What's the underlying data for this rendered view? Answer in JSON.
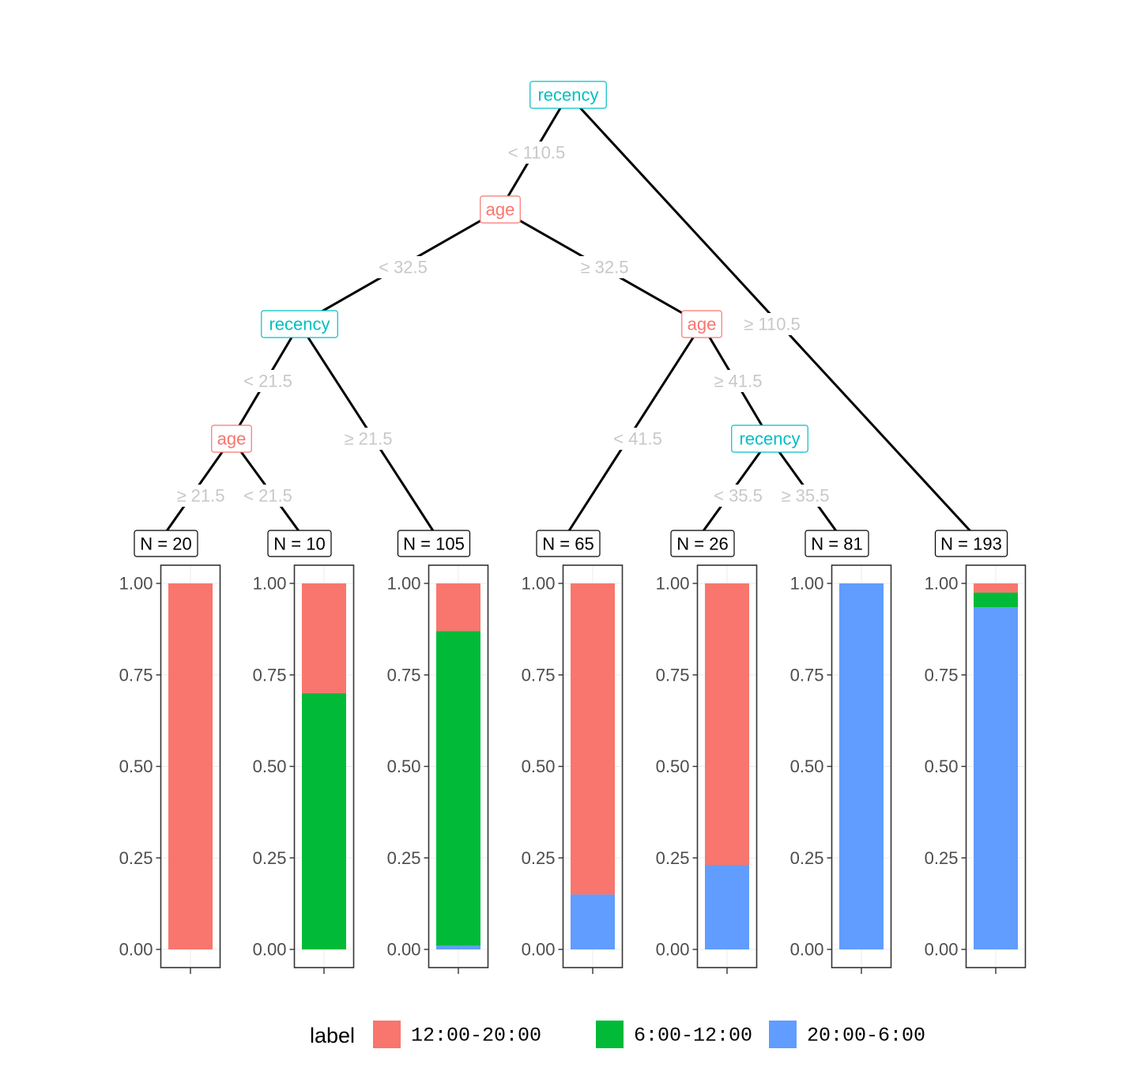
{
  "colors": {
    "class_1": "#F8766D",
    "class_2": "#00BA38",
    "class_3": "#619CFF",
    "recency_node": "#00BFC4",
    "age_node": "#F8766D",
    "edge": "#000000",
    "edge_label": "#C8C8C8"
  },
  "tree": {
    "nodes": [
      {
        "id": "n1",
        "label": "recency",
        "var": "recency"
      },
      {
        "id": "n2",
        "label": "age",
        "var": "age"
      },
      {
        "id": "n3",
        "label": "recency",
        "var": "recency"
      },
      {
        "id": "n4",
        "label": "age",
        "var": "age"
      },
      {
        "id": "n5",
        "label": "age",
        "var": "age"
      },
      {
        "id": "n6",
        "label": "recency",
        "var": "recency"
      }
    ],
    "edges": [
      {
        "from": "n1",
        "to": "n2",
        "label": "< 110.5"
      },
      {
        "from": "n1",
        "to": "L7",
        "label": "≥ 110.5"
      },
      {
        "from": "n2",
        "to": "n3",
        "label": "< 32.5"
      },
      {
        "from": "n2",
        "to": "n5",
        "label": "≥ 32.5"
      },
      {
        "from": "n3",
        "to": "n4",
        "label": "< 21.5"
      },
      {
        "from": "n3",
        "to": "L3",
        "label": "≥ 21.5"
      },
      {
        "from": "n4",
        "to": "L1",
        "label": "≥ 21.5"
      },
      {
        "from": "n4",
        "to": "L2",
        "label": "< 21.5"
      },
      {
        "from": "n5",
        "to": "L4",
        "label": "< 41.5"
      },
      {
        "from": "n5",
        "to": "n6",
        "label": "≥ 41.5"
      },
      {
        "from": "n6",
        "to": "L5",
        "label": "< 35.5"
      },
      {
        "from": "n6",
        "to": "L6",
        "label": "≥ 35.5"
      }
    ]
  },
  "legend": {
    "title": "label",
    "items": [
      {
        "label": "12:00-20:00",
        "color": "#F8766D"
      },
      {
        "label": "6:00-12:00",
        "color": "#00BA38"
      },
      {
        "label": "20:00-6:00",
        "color": "#619CFF"
      }
    ]
  },
  "chart_data": {
    "type": "bar",
    "stacked": true,
    "categories": [
      "N = 20",
      "N = 10",
      "N = 105",
      "N = 65",
      "N = 26",
      "N = 81",
      "N = 193"
    ],
    "series": [
      {
        "name": "12:00-20:00",
        "values": [
          1.0,
          0.3,
          0.13,
          0.85,
          0.77,
          0.0,
          0.025
        ]
      },
      {
        "name": "6:00-12:00",
        "values": [
          0.0,
          0.7,
          0.86,
          0.0,
          0.0,
          0.0,
          0.04
        ]
      },
      {
        "name": "20:00-6:00",
        "values": [
          0.0,
          0.0,
          0.01,
          0.15,
          0.23,
          1.0,
          0.935
        ]
      }
    ],
    "ylim": [
      0,
      1
    ],
    "yticks": [
      "0.00",
      "0.25",
      "0.50",
      "0.75",
      "1.00"
    ],
    "grid": true,
    "legend_position": "bottom"
  }
}
